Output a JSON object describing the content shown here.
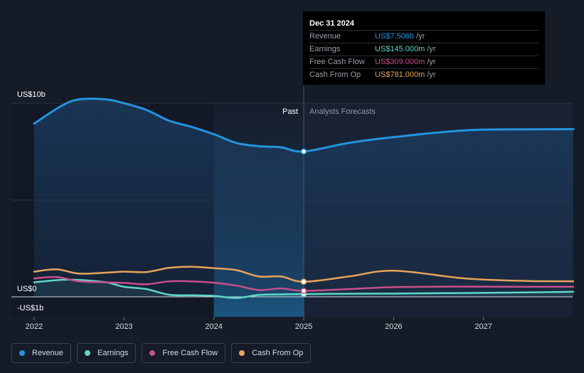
{
  "chart_data": {
    "type": "line",
    "ylabels": {
      "top": "US$10b",
      "zero": "US$0",
      "bottom": "-US$1b"
    },
    "x_ticks": [
      "2022",
      "2023",
      "2024",
      "2025",
      "2026",
      "2027"
    ],
    "ylim": [
      -1,
      10
    ],
    "regions": {
      "past": "Past",
      "forecast": "Analysts Forecasts"
    },
    "grid": true,
    "series": [
      {
        "name": "Revenue",
        "color": "#2394df",
        "fill": true,
        "points": [
          [
            2022.0,
            8.95
          ],
          [
            2022.3,
            9.85
          ],
          [
            2022.5,
            10.2
          ],
          [
            2022.8,
            10.2
          ],
          [
            2023.0,
            10.0
          ],
          [
            2023.25,
            9.65
          ],
          [
            2023.5,
            9.1
          ],
          [
            2023.75,
            8.78
          ],
          [
            2024.0,
            8.4
          ],
          [
            2024.25,
            7.95
          ],
          [
            2024.5,
            7.78
          ],
          [
            2024.75,
            7.72
          ],
          [
            2025.0,
            7.506
          ],
          [
            2025.5,
            7.95
          ],
          [
            2026.0,
            8.25
          ],
          [
            2026.8,
            8.6
          ],
          [
            2027.5,
            8.65
          ],
          [
            2028.0,
            8.66
          ]
        ]
      },
      {
        "name": "Earnings",
        "color": "#5fd6c4",
        "fill": true,
        "points": [
          [
            2022.0,
            0.75
          ],
          [
            2022.3,
            0.88
          ],
          [
            2022.5,
            0.87
          ],
          [
            2022.8,
            0.75
          ],
          [
            2023.0,
            0.52
          ],
          [
            2023.25,
            0.4
          ],
          [
            2023.5,
            0.11
          ],
          [
            2023.75,
            0.08
          ],
          [
            2024.0,
            0.05
          ],
          [
            2024.25,
            -0.06
          ],
          [
            2024.5,
            0.1
          ],
          [
            2024.75,
            0.13
          ],
          [
            2025.0,
            0.145
          ],
          [
            2025.5,
            0.16
          ],
          [
            2026.0,
            0.17
          ],
          [
            2026.8,
            0.2
          ],
          [
            2027.5,
            0.23
          ],
          [
            2028.0,
            0.26
          ]
        ]
      },
      {
        "name": "Free Cash Flow",
        "color": "#c64f8b",
        "fill": false,
        "points": [
          [
            2022.0,
            0.95
          ],
          [
            2022.25,
            1.02
          ],
          [
            2022.5,
            0.8
          ],
          [
            2022.8,
            0.75
          ],
          [
            2023.0,
            0.72
          ],
          [
            2023.25,
            0.65
          ],
          [
            2023.5,
            0.8
          ],
          [
            2023.75,
            0.8
          ],
          [
            2024.0,
            0.73
          ],
          [
            2024.25,
            0.58
          ],
          [
            2024.5,
            0.35
          ],
          [
            2024.75,
            0.43
          ],
          [
            2025.0,
            0.309
          ],
          [
            2025.5,
            0.4
          ],
          [
            2026.0,
            0.5
          ],
          [
            2026.8,
            0.53
          ],
          [
            2027.5,
            0.52
          ],
          [
            2028.0,
            0.52
          ]
        ]
      },
      {
        "name": "Cash From Op",
        "color": "#e6a35a",
        "fill": false,
        "points": [
          [
            2022.0,
            1.3
          ],
          [
            2022.25,
            1.42
          ],
          [
            2022.5,
            1.2
          ],
          [
            2022.8,
            1.25
          ],
          [
            2023.0,
            1.3
          ],
          [
            2023.25,
            1.28
          ],
          [
            2023.5,
            1.5
          ],
          [
            2023.75,
            1.55
          ],
          [
            2024.0,
            1.48
          ],
          [
            2024.25,
            1.38
          ],
          [
            2024.5,
            1.05
          ],
          [
            2024.75,
            1.05
          ],
          [
            2025.0,
            0.781
          ],
          [
            2025.5,
            1.05
          ],
          [
            2026.0,
            1.35
          ],
          [
            2026.8,
            0.95
          ],
          [
            2027.5,
            0.82
          ],
          [
            2028.0,
            0.8
          ]
        ]
      }
    ]
  },
  "tooltip": {
    "date": "Dec 31 2024",
    "rows": [
      {
        "name": "Revenue",
        "value": "US$7.506b",
        "unit": "/yr",
        "color": "#2394df"
      },
      {
        "name": "Earnings",
        "value": "US$145.000m",
        "unit": "/yr",
        "color": "#5fd6c4"
      },
      {
        "name": "Free Cash Flow",
        "value": "US$309.000m",
        "unit": "/yr",
        "color": "#c64f8b"
      },
      {
        "name": "Cash From Op",
        "value": "US$781.000m",
        "unit": "/yr",
        "color": "#e6a35a"
      }
    ]
  },
  "legend": [
    {
      "label": "Revenue",
      "color": "#2394df"
    },
    {
      "label": "Earnings",
      "color": "#5fd6c4"
    },
    {
      "label": "Free Cash Flow",
      "color": "#c64f8b"
    },
    {
      "label": "Cash From Op",
      "color": "#e6a35a"
    }
  ]
}
